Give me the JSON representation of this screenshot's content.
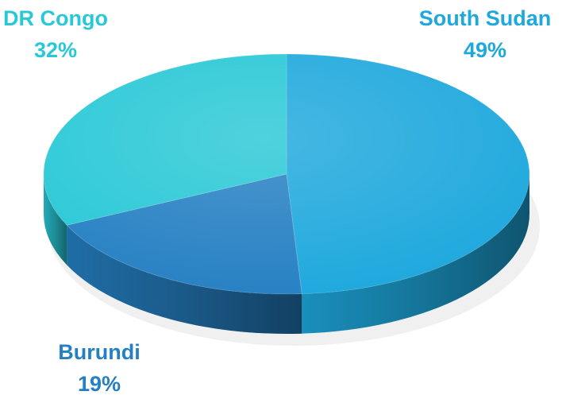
{
  "chart_data": {
    "type": "pie",
    "categories": [
      "South Sudan",
      "Burundi",
      "DR Congo"
    ],
    "values": [
      49,
      19,
      32
    ],
    "value_labels": [
      "49%",
      "19%",
      "32%"
    ],
    "colors": [
      "#1ea8dd",
      "#2580c3",
      "#28c8d6"
    ]
  }
}
